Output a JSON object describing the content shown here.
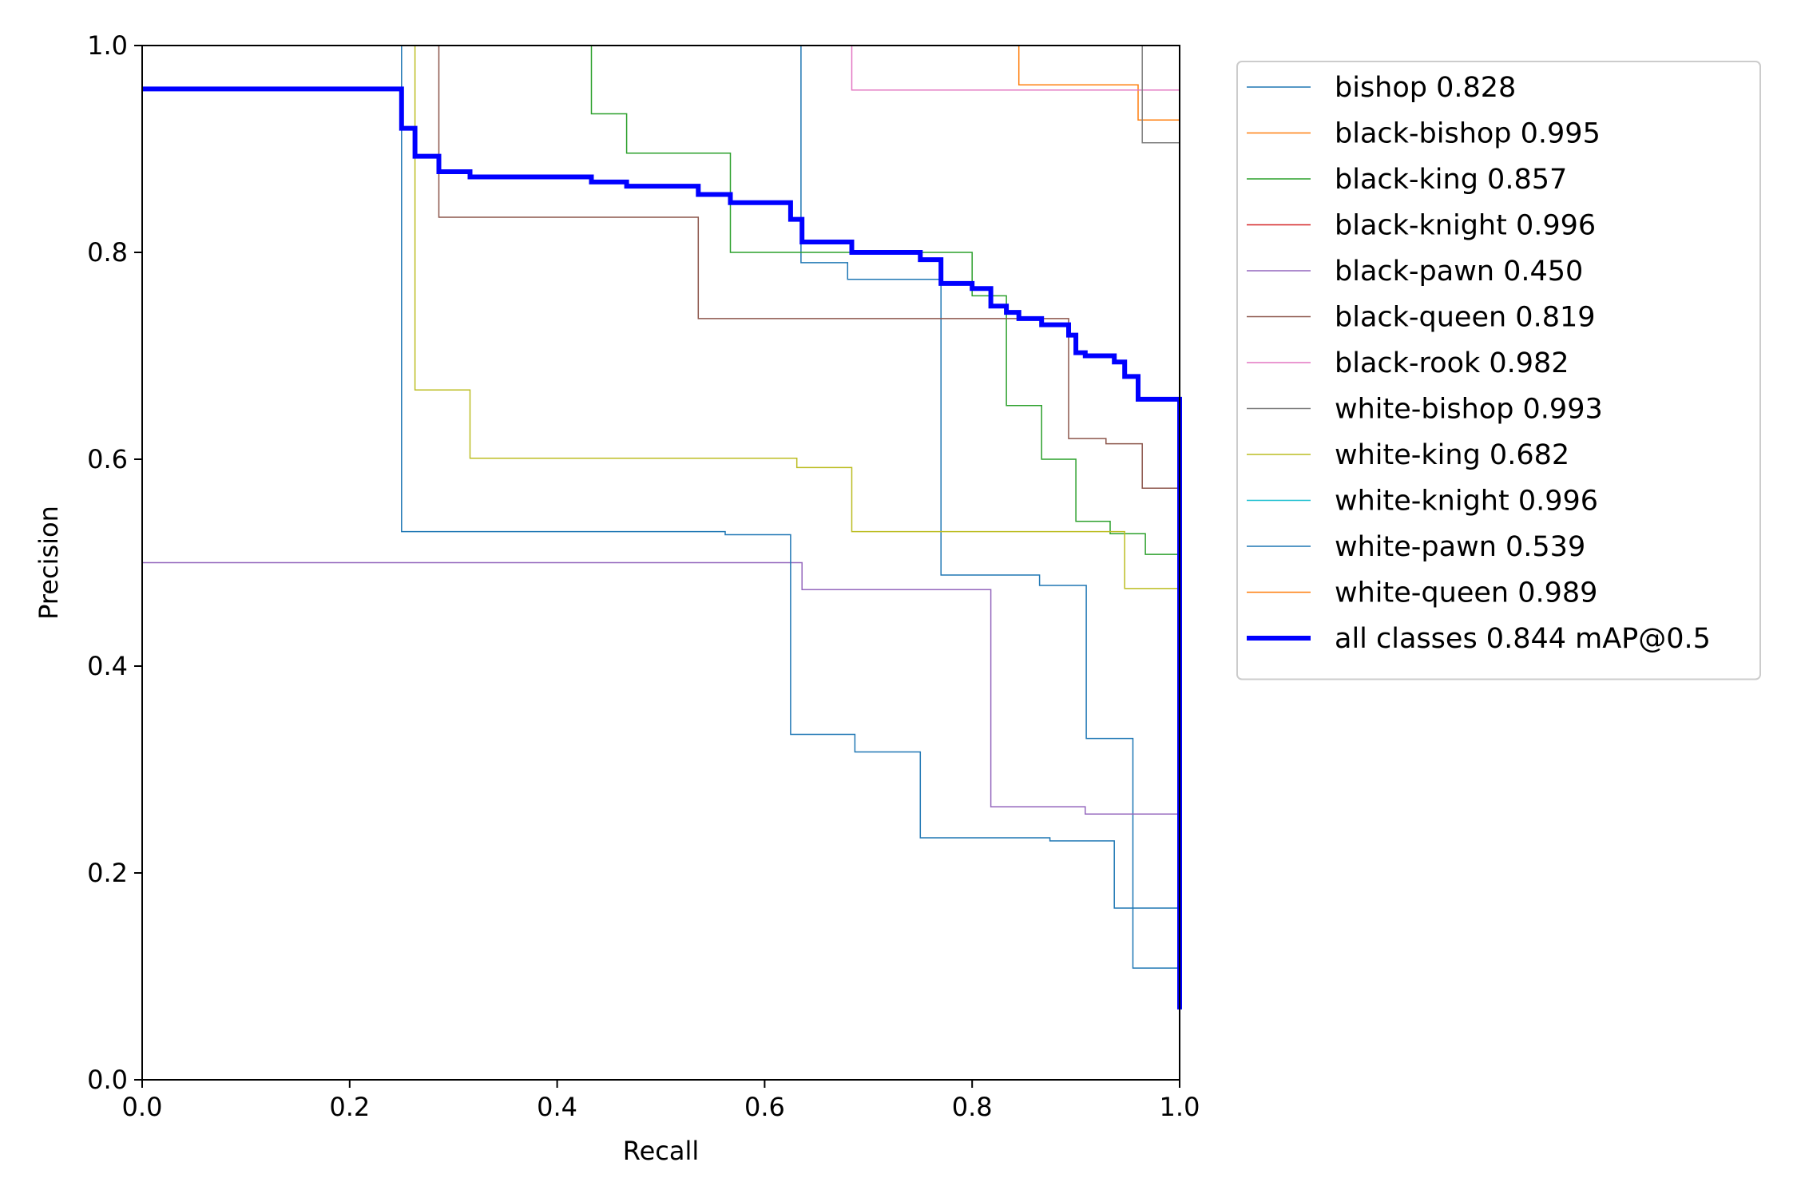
{
  "chart_data": {
    "type": "line",
    "xlabel": "Recall",
    "ylabel": "Precision",
    "xlim": [
      0,
      1
    ],
    "ylim": [
      0,
      1
    ],
    "xticks": [
      "0.0",
      "0.2",
      "0.4",
      "0.6",
      "0.8",
      "1.0"
    ],
    "yticks": [
      "0.0",
      "0.2",
      "0.4",
      "0.6",
      "0.8",
      "1.0"
    ],
    "grid": false,
    "legend_position": "outside-right",
    "series": [
      {
        "name": "bishop 0.828",
        "color": "#1f77b4",
        "width": 1.5,
        "x": [
          0.63,
          0.635,
          0.635,
          0.68,
          0.68,
          0.77,
          0.77,
          0.865,
          0.865,
          0.91,
          0.91,
          0.955,
          0.955,
          1.0,
          1.0
        ],
        "y": [
          1.0,
          1.0,
          0.79,
          0.79,
          0.774,
          0.774,
          0.488,
          0.488,
          0.478,
          0.478,
          0.33,
          0.33,
          0.108,
          0.108,
          0.0
        ]
      },
      {
        "name": "black-bishop 0.995",
        "color": "#ff7f0e",
        "width": 1.5,
        "x": [
          0.845,
          0.845,
          0.96,
          0.96,
          0.998,
          1.0,
          1.0
        ],
        "y": [
          1.0,
          0.962,
          0.962,
          0.928,
          0.928,
          0.928,
          0.66
        ]
      },
      {
        "name": "black-king 0.857",
        "color": "#2ca02c",
        "width": 1.5,
        "x": [
          0.43,
          0.433,
          0.433,
          0.467,
          0.467,
          0.567,
          0.567,
          0.8,
          0.8,
          0.833,
          0.833,
          0.867,
          0.867,
          0.9,
          0.9,
          0.933,
          0.933,
          0.967,
          0.967,
          1.0,
          1.0
        ],
        "y": [
          1.0,
          1.0,
          0.934,
          0.934,
          0.896,
          0.896,
          0.8,
          0.8,
          0.758,
          0.758,
          0.652,
          0.652,
          0.6,
          0.6,
          0.54,
          0.54,
          0.528,
          0.528,
          0.508,
          0.508,
          0.0
        ]
      },
      {
        "name": "black-knight 0.996",
        "color": "#d62728",
        "width": 1.5,
        "x": [
          1.0,
          1.0
        ],
        "y": [
          1.0,
          0.95
        ]
      },
      {
        "name": "black-pawn 0.450",
        "color": "#9467bd",
        "width": 1.5,
        "x": [
          0.0,
          0.636,
          0.636,
          0.818,
          0.818,
          0.909,
          0.909,
          1.0,
          1.0
        ],
        "y": [
          0.5,
          0.5,
          0.474,
          0.474,
          0.264,
          0.264,
          0.257,
          0.257,
          0.0
        ]
      },
      {
        "name": "black-queen 0.819",
        "color": "#8c564b",
        "width": 1.5,
        "x": [
          0.286,
          0.286,
          0.536,
          0.536,
          0.893,
          0.893,
          0.929,
          0.929,
          0.964,
          0.964,
          1.0,
          1.0
        ],
        "y": [
          1.0,
          0.834,
          0.834,
          0.736,
          0.736,
          0.62,
          0.62,
          0.615,
          0.615,
          0.572,
          0.572,
          0.0
        ]
      },
      {
        "name": "black-rook 0.982",
        "color": "#e377c2",
        "width": 1.5,
        "x": [
          0.684,
          0.684,
          1.0,
          1.0
        ],
        "y": [
          1.0,
          0.957,
          0.957,
          0.0
        ]
      },
      {
        "name": "white-bishop 0.993",
        "color": "#7f7f7f",
        "width": 1.5,
        "x": [
          0.964,
          0.964,
          1.0,
          1.0
        ],
        "y": [
          1.0,
          0.906,
          0.906,
          0.0
        ]
      },
      {
        "name": "white-king 0.682",
        "color": "#bcbd22",
        "width": 1.5,
        "x": [
          0.263,
          0.263,
          0.316,
          0.316,
          0.631,
          0.631,
          0.684,
          0.684,
          0.947,
          0.947,
          1.0,
          1.0
        ],
        "y": [
          1.0,
          0.667,
          0.667,
          0.601,
          0.601,
          0.592,
          0.592,
          0.53,
          0.53,
          0.475,
          0.475,
          0.0
        ]
      },
      {
        "name": "white-knight 0.996",
        "color": "#17becf",
        "width": 1.5,
        "x": [
          1.0,
          1.0
        ],
        "y": [
          1.0,
          0.0
        ]
      },
      {
        "name": "white-pawn 0.539",
        "color": "#1f77b4",
        "width": 1.5,
        "x": [
          0.25,
          0.25,
          0.562,
          0.562,
          0.625,
          0.625,
          0.687,
          0.687,
          0.75,
          0.75,
          0.875,
          0.875,
          0.937,
          0.937,
          1.0,
          1.0
        ],
        "y": [
          1.0,
          0.53,
          0.53,
          0.527,
          0.527,
          0.334,
          0.334,
          0.317,
          0.317,
          0.234,
          0.234,
          0.231,
          0.231,
          0.166,
          0.166,
          0.0
        ]
      },
      {
        "name": "white-queen 0.989",
        "color": "#ff7f0e",
        "width": 1.5,
        "x": [
          1.0,
          1.0
        ],
        "y": [
          0.93,
          0.66
        ]
      },
      {
        "name": "all classes 0.844 mAP@0.5",
        "color": "#0000ff",
        "width": 6,
        "x": [
          0.0,
          0.25,
          0.25,
          0.263,
          0.263,
          0.286,
          0.286,
          0.316,
          0.316,
          0.433,
          0.433,
          0.467,
          0.467,
          0.536,
          0.536,
          0.567,
          0.567,
          0.625,
          0.625,
          0.636,
          0.636,
          0.684,
          0.684,
          0.75,
          0.75,
          0.77,
          0.77,
          0.8,
          0.8,
          0.818,
          0.818,
          0.833,
          0.833,
          0.845,
          0.845,
          0.867,
          0.867,
          0.893,
          0.893,
          0.9,
          0.9,
          0.909,
          0.909,
          0.937,
          0.937,
          0.947,
          0.947,
          0.96,
          0.96,
          0.964,
          0.964,
          1.0,
          1.0
        ],
        "y": [
          0.958,
          0.958,
          0.92,
          0.92,
          0.893,
          0.893,
          0.878,
          0.878,
          0.873,
          0.873,
          0.868,
          0.868,
          0.864,
          0.864,
          0.856,
          0.856,
          0.848,
          0.848,
          0.832,
          0.832,
          0.81,
          0.81,
          0.8,
          0.8,
          0.793,
          0.793,
          0.77,
          0.77,
          0.765,
          0.765,
          0.748,
          0.748,
          0.742,
          0.742,
          0.736,
          0.736,
          0.73,
          0.73,
          0.72,
          0.72,
          0.703,
          0.703,
          0.7,
          0.7,
          0.694,
          0.694,
          0.68,
          0.68,
          0.658,
          0.658,
          0.658,
          0.658,
          0.068
        ]
      }
    ]
  }
}
